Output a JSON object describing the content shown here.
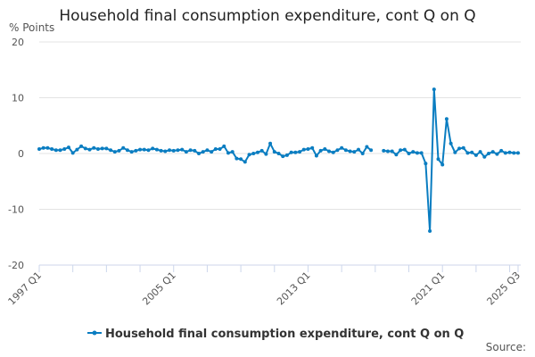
{
  "chart_data": {
    "type": "line",
    "title": "Household final consumption expenditure, cont Q on Q",
    "ylabel": "% Points",
    "xlabel": "",
    "ylim": [
      -20,
      20
    ],
    "yticks": [
      20,
      10,
      0,
      -10,
      -20
    ],
    "xtick_labels": [
      "1997 Q1",
      "2005 Q1",
      "2013 Q1",
      "2021 Q1",
      "2025 Q3"
    ],
    "grid": "horizontal",
    "legend_position": "bottom",
    "color": "#0a7dc1",
    "start": "1997 Q1",
    "end": "2025 Q3",
    "series": [
      {
        "name": "Household final consumption expenditure, cont Q on Q",
        "values": [
          0.8,
          1.0,
          1.0,
          0.8,
          0.6,
          0.6,
          0.8,
          1.1,
          0.1,
          0.7,
          1.3,
          0.9,
          0.7,
          1.0,
          0.8,
          0.9,
          0.9,
          0.6,
          0.3,
          0.5,
          1.0,
          0.6,
          0.3,
          0.5,
          0.7,
          0.7,
          0.6,
          0.9,
          0.7,
          0.5,
          0.4,
          0.6,
          0.5,
          0.6,
          0.7,
          0.3,
          0.6,
          0.5,
          0.0,
          0.3,
          0.6,
          0.3,
          0.8,
          0.8,
          1.3,
          0.1,
          0.3,
          -0.9,
          -1.0,
          -1.5,
          -0.2,
          0.0,
          0.2,
          0.5,
          -0.1,
          1.8,
          0.3,
          0.0,
          -0.5,
          -0.3,
          0.2,
          0.2,
          0.3,
          0.7,
          0.8,
          1.0,
          -0.4,
          0.5,
          0.8,
          0.4,
          0.2,
          0.6,
          1.0,
          0.6,
          0.4,
          0.3,
          0.7,
          0.0,
          1.2,
          0.6,
          null,
          null,
          0.5,
          0.4,
          0.4,
          -0.2,
          0.6,
          0.7,
          0.0,
          0.3,
          0.1,
          0.1,
          -1.8,
          -13.9,
          11.5,
          -1.0,
          -2.0,
          6.2,
          1.8,
          0.2,
          0.9,
          1.0,
          0.1,
          0.2,
          -0.3,
          0.3,
          -0.6,
          0.0,
          0.3,
          -0.1,
          0.5,
          0.1,
          0.2,
          0.1,
          0.1
        ]
      }
    ],
    "source_label": "Source:"
  }
}
